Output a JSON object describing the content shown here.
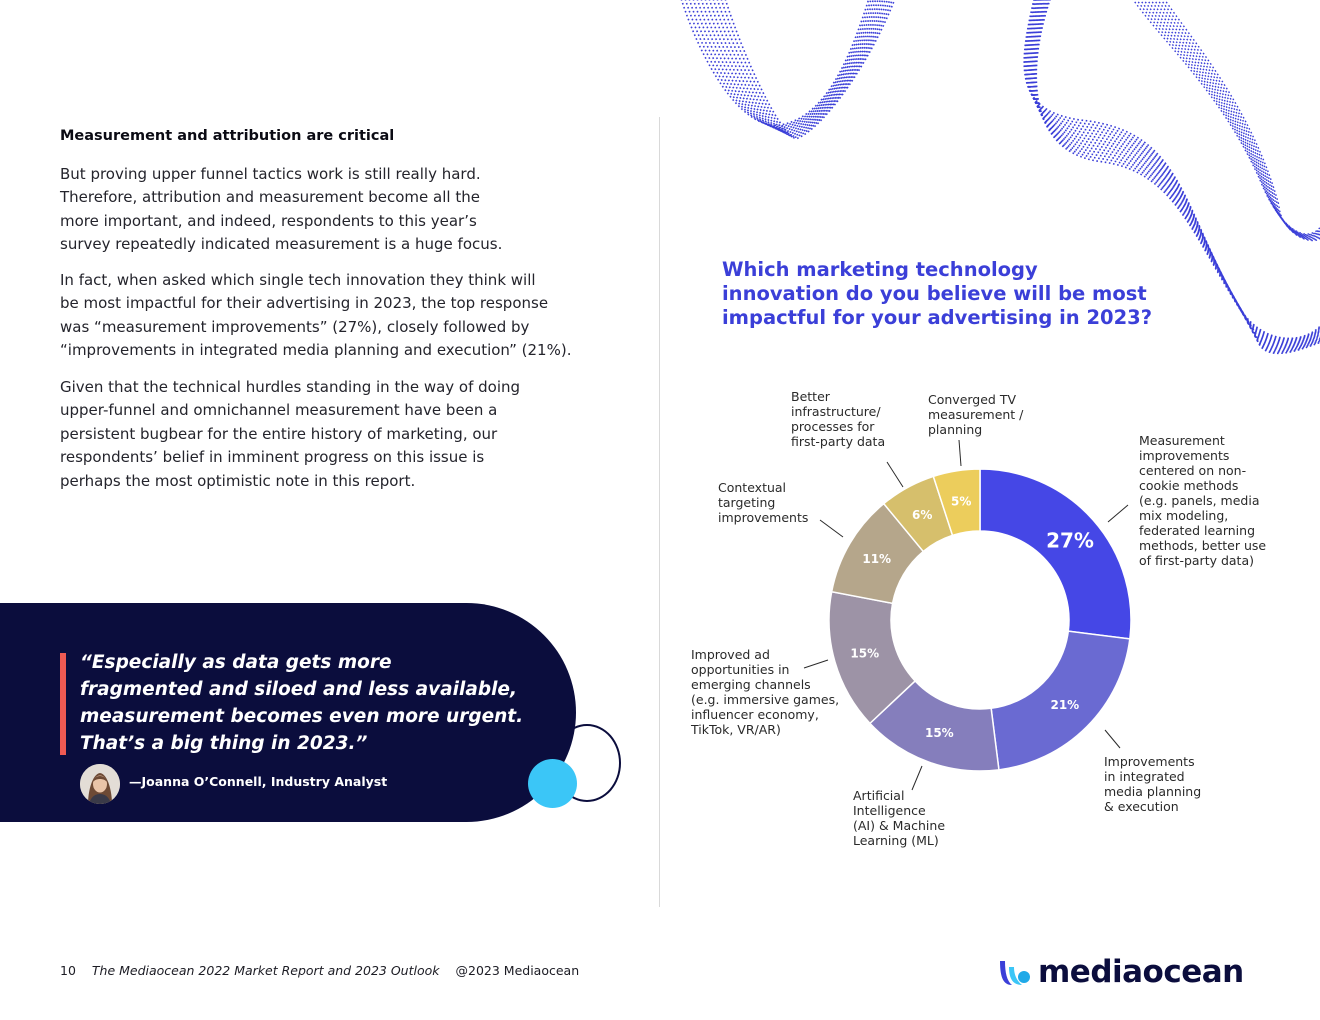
{
  "article": {
    "heading": "Measurement and attribution are critical",
    "paragraph1": [
      "But proving upper funnel tactics work is still really hard.",
      "Therefore, attribution and measurement become all the",
      "more important, and indeed, respondents to this year’s",
      "survey repeatedly indicated measurement is a huge focus."
    ],
    "paragraph2": [
      "In fact, when asked which single tech innovation they think will",
      "be most impactful for their advertising in 2023, the top response",
      "was “measurement improvements” (27%), closely followed by",
      "“improvements in integrated media planning and execution” (21%)."
    ],
    "paragraph3": [
      "Given that the technical hurdles standing in the way of doing",
      "upper-funnel and omnichannel measurement have been a",
      "persistent bugbear for the entire history of marketing, our",
      "respondents’ belief in imminent progress on this issue is",
      "perhaps the most optimistic note in this report."
    ]
  },
  "quote": {
    "lines": [
      "“Especially as data gets more",
      "fragmented and siloed and less available,",
      "measurement becomes even more urgent.",
      "That’s a big thing in 2023.”"
    ],
    "attribution": "—Joanna O’Connell, Industry Analyst"
  },
  "survey": {
    "question_lines": [
      "Which marketing technology",
      "innovation do you believe will be most",
      "impactful for your advertising in 2023?"
    ]
  },
  "chart_data": {
    "type": "pie",
    "style": "donut",
    "legend": "none",
    "categories": [
      "Measurement improvements centered on non-cookie methods (e.g. panels, media mix modeling, federated learning methods, better use of first-party data)",
      "Improvements in integrated media planning & execution",
      "Artificial Intelligence (AI) & Machine Learning (ML)",
      "Improved ad opportunities in emerging channels (e.g. immersive games, influencer economy, TikTok, VR/AR)",
      "Contextual targeting improvements",
      "Better infrastructure/ processes for first-party data",
      "Converged TV measurement / planning"
    ],
    "values": [
      27,
      21,
      15,
      15,
      11,
      6,
      5
    ],
    "value_labels": [
      "27%",
      "21%",
      "15%",
      "15%",
      "11%",
      "6%",
      "5%"
    ],
    "colors": [
      "#4547e6",
      "#6a6ad2",
      "#857ebc",
      "#9d93a6",
      "#b5a68b",
      "#d6bf6c",
      "#eccd5c"
    ],
    "slice_labels": [
      [
        "Measurement",
        "improvements",
        "centered on non-",
        "cookie methods",
        "(e.g. panels, media",
        "mix modeling,",
        "federated learning",
        "methods, better use",
        "of first-party data)"
      ],
      [
        "Improvements",
        "in integrated",
        "media planning",
        "& execution"
      ],
      [
        "Artificial",
        "Intelligence",
        "(AI) & Machine",
        "Learning (ML)"
      ],
      [
        "Improved ad",
        "opportunities in",
        "emerging channels",
        "(e.g. immersive games,",
        "influencer economy,",
        "TikTok, VR/AR)"
      ],
      [
        "Contextual",
        "targeting",
        "improvements"
      ],
      [
        "Better",
        "infrastructure/",
        "processes for",
        "first-party data"
      ],
      [
        "Converged TV",
        "measurement /",
        "planning"
      ]
    ]
  },
  "footer": {
    "page_number": "10",
    "report_title": "The Mediaocean 2022 Market Report and 2023 Outlook",
    "copyright": "@2023 Mediaocean",
    "brand": "mediaocean"
  },
  "colors": {
    "accent_blue": "#3b3fd8",
    "navy": "#0b0d3d",
    "quote_bar": "#ef5a53",
    "cyan": "#3bc6f7"
  }
}
